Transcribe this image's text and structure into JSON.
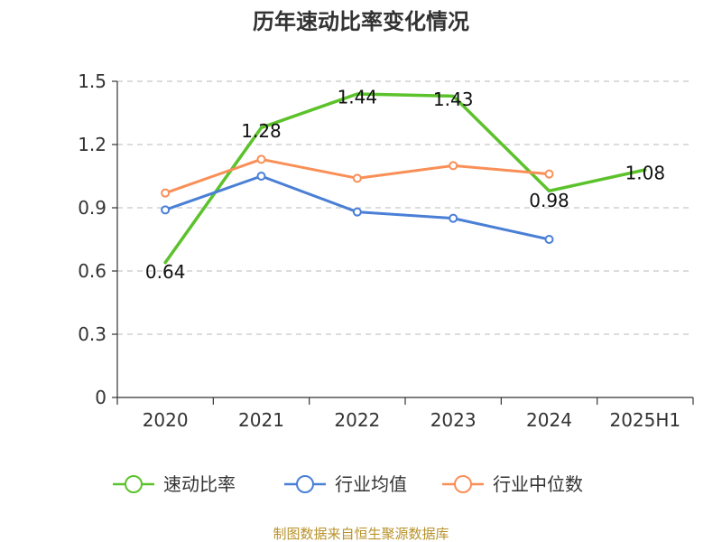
{
  "chart_data": {
    "type": "line",
    "title": "历年速动比率变化情况",
    "categories": [
      "2020",
      "2021",
      "2022",
      "2023",
      "2024",
      "2025H1"
    ],
    "ylim": [
      0,
      1.5
    ],
    "yticks": [
      "0",
      "0.3",
      "0.6",
      "0.9",
      "1.2",
      "1.5"
    ],
    "grid": true,
    "legend_position": "bottom",
    "series": [
      {
        "name": "速动比率",
        "color": "#5cc22b",
        "values": [
          0.64,
          1.28,
          1.44,
          1.43,
          0.98,
          1.08
        ],
        "labels": [
          "0.64",
          "1.28",
          "1.44",
          "1.43",
          "0.98",
          "1.08"
        ],
        "markers": false
      },
      {
        "name": "行业均值",
        "color": "#4a7fd6",
        "values": [
          0.89,
          1.05,
          0.88,
          0.85,
          0.75,
          null
        ],
        "markers": true
      },
      {
        "name": "行业中位数",
        "color": "#f98f57",
        "values": [
          0.97,
          1.13,
          1.04,
          1.1,
          1.06,
          null
        ],
        "markers": true
      }
    ]
  },
  "source": "制图数据来自恒生聚源数据库"
}
